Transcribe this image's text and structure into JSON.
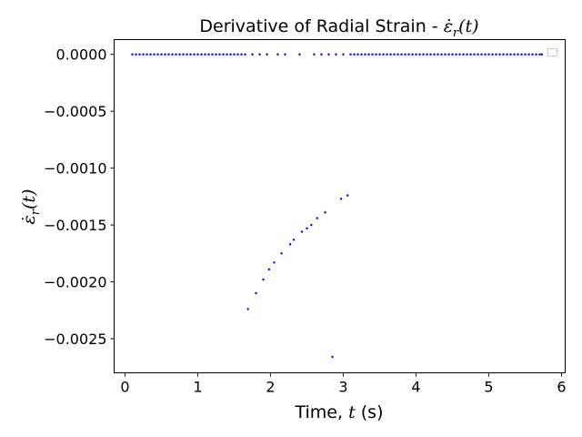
{
  "chart_data": {
    "type": "scatter",
    "title_parts": {
      "text": "Derivative of Radial Strain - ",
      "math_symbol": "ε̇",
      "math_sub": "r",
      "math_arg": "(t)"
    },
    "xlabel_parts": {
      "text": "Time, ",
      "math": "t",
      "unit": " (s)"
    },
    "ylabel_parts": {
      "math_symbol": "ε̇",
      "math_sub": "r",
      "math_arg": "(t)"
    },
    "xlim": [
      -0.15,
      6.05
    ],
    "ylim": [
      -0.0028,
      0.00013
    ],
    "x_ticks": [
      0,
      1,
      2,
      3,
      4,
      5,
      6
    ],
    "x_tick_labels": [
      "0",
      "1",
      "2",
      "3",
      "4",
      "5",
      "6"
    ],
    "y_ticks": [
      0,
      -0.0005,
      -0.001,
      -0.0015,
      -0.002,
      -0.0025
    ],
    "y_tick_labels": [
      "0.0000",
      "−0.0005",
      "−0.0010",
      "−0.0015",
      "−0.0020",
      "−0.0025"
    ],
    "grid": false,
    "legend": {
      "placement": "top-right",
      "entries": []
    },
    "series": [
      {
        "color": "#0000ff",
        "marker": "dot",
        "points": [
          [
            0.1,
            0
          ],
          [
            0.15,
            0
          ],
          [
            0.2,
            0
          ],
          [
            0.25,
            0
          ],
          [
            0.3,
            0
          ],
          [
            0.35,
            0
          ],
          [
            0.4,
            0
          ],
          [
            0.45,
            0
          ],
          [
            0.5,
            0
          ],
          [
            0.55,
            0
          ],
          [
            0.6,
            0
          ],
          [
            0.65,
            0
          ],
          [
            0.7,
            0
          ],
          [
            0.75,
            0
          ],
          [
            0.8,
            0
          ],
          [
            0.85,
            0
          ],
          [
            0.9,
            0
          ],
          [
            0.95,
            0
          ],
          [
            1.0,
            0
          ],
          [
            1.05,
            0
          ],
          [
            1.1,
            0
          ],
          [
            1.15,
            0
          ],
          [
            1.2,
            0
          ],
          [
            1.25,
            0
          ],
          [
            1.3,
            0
          ],
          [
            1.35,
            0
          ],
          [
            1.4,
            0
          ],
          [
            1.45,
            0
          ],
          [
            1.5,
            0
          ],
          [
            1.55,
            0
          ],
          [
            1.6,
            0
          ],
          [
            1.65,
            0
          ],
          [
            1.75,
            0
          ],
          [
            1.85,
            0
          ],
          [
            1.95,
            0
          ],
          [
            2.1,
            0
          ],
          [
            2.2,
            0
          ],
          [
            2.4,
            0
          ],
          [
            2.6,
            0
          ],
          [
            2.7,
            0
          ],
          [
            2.8,
            0
          ],
          [
            2.9,
            0
          ],
          [
            3.0,
            0
          ],
          [
            3.1,
            0
          ],
          [
            3.15,
            0
          ],
          [
            3.2,
            0
          ],
          [
            3.25,
            0
          ],
          [
            3.3,
            0
          ],
          [
            3.35,
            0
          ],
          [
            3.4,
            0
          ],
          [
            3.45,
            0
          ],
          [
            3.5,
            0
          ],
          [
            3.55,
            0
          ],
          [
            3.6,
            0
          ],
          [
            3.65,
            0
          ],
          [
            3.7,
            0
          ],
          [
            3.75,
            0
          ],
          [
            3.8,
            0
          ],
          [
            3.85,
            0
          ],
          [
            3.9,
            0
          ],
          [
            3.95,
            0
          ],
          [
            4.0,
            0
          ],
          [
            4.05,
            0
          ],
          [
            4.1,
            0
          ],
          [
            4.15,
            0
          ],
          [
            4.2,
            0
          ],
          [
            4.25,
            0
          ],
          [
            4.3,
            0
          ],
          [
            4.35,
            0
          ],
          [
            4.4,
            0
          ],
          [
            4.45,
            0
          ],
          [
            4.5,
            0
          ],
          [
            4.55,
            0
          ],
          [
            4.6,
            0
          ],
          [
            4.65,
            0
          ],
          [
            4.7,
            0
          ],
          [
            4.75,
            0
          ],
          [
            4.8,
            0
          ],
          [
            4.85,
            0
          ],
          [
            4.9,
            0
          ],
          [
            4.95,
            0
          ],
          [
            5.0,
            0
          ],
          [
            5.05,
            0
          ],
          [
            5.1,
            0
          ],
          [
            5.15,
            0
          ],
          [
            5.2,
            0
          ],
          [
            5.25,
            0
          ],
          [
            5.3,
            0
          ],
          [
            5.35,
            0
          ],
          [
            5.4,
            0
          ],
          [
            5.45,
            0
          ],
          [
            5.5,
            0
          ],
          [
            5.55,
            0
          ],
          [
            5.6,
            0
          ],
          [
            5.65,
            0
          ],
          [
            5.7,
            0
          ],
          [
            5.73,
            0
          ],
          [
            1.69,
            -0.00224
          ],
          [
            1.8,
            -0.0021
          ],
          [
            1.9,
            -0.00198
          ],
          [
            1.98,
            -0.00189
          ],
          [
            2.05,
            -0.00183
          ],
          [
            2.15,
            -0.00175
          ],
          [
            2.27,
            -0.00167
          ],
          [
            2.32,
            -0.00163
          ],
          [
            2.43,
            -0.00156
          ],
          [
            2.5,
            -0.00153
          ],
          [
            2.56,
            -0.0015
          ],
          [
            2.64,
            -0.00144
          ],
          [
            2.75,
            -0.00139
          ],
          [
            2.97,
            -0.00127
          ],
          [
            3.06,
            -0.00124
          ],
          [
            2.85,
            -0.00266
          ]
        ]
      }
    ]
  }
}
